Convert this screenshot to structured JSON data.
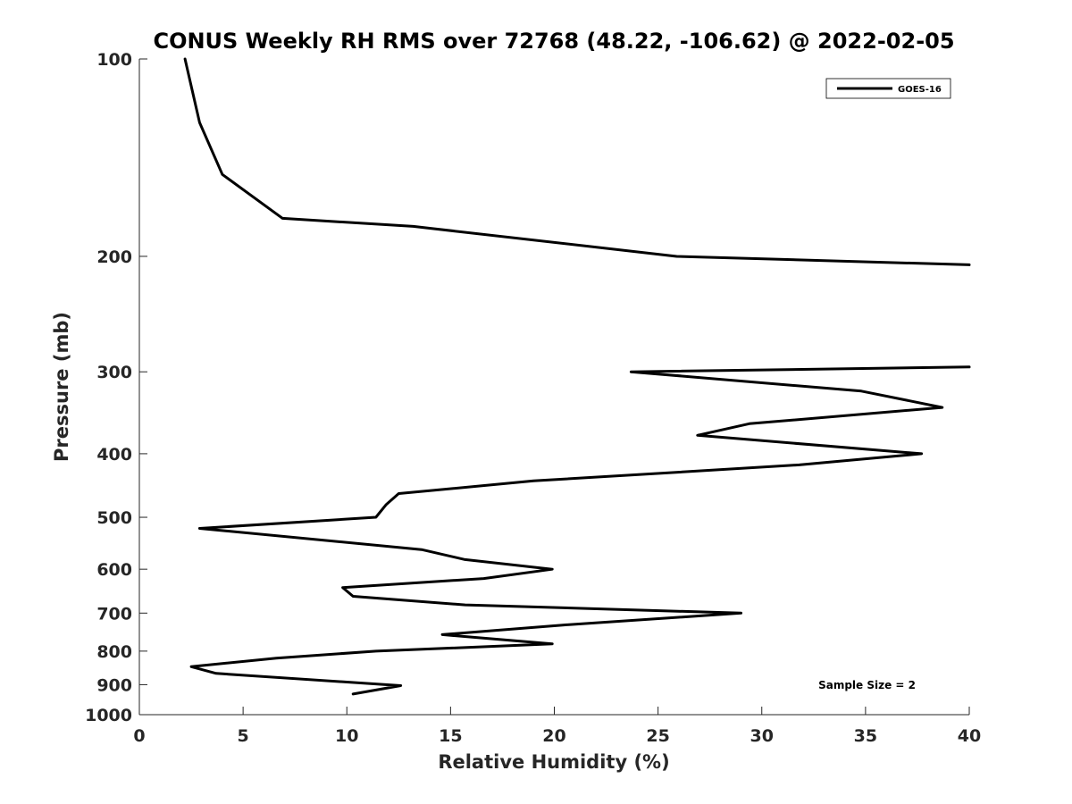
{
  "chart_data": {
    "type": "line",
    "title": "CONUS Weekly RH RMS over 72768 (48.22, -106.62) @ 2022-02-05",
    "xlabel": "Relative Humidity (%)",
    "ylabel": "Pressure (mb)",
    "xlim": [
      0,
      40
    ],
    "ylim": [
      1000,
      100
    ],
    "yscale": "log",
    "y_reversed": true,
    "xticks": [
      0,
      5,
      10,
      15,
      20,
      25,
      30,
      35,
      40
    ],
    "xtick_labels": [
      "0",
      "5",
      "10",
      "15",
      "20",
      "25",
      "30",
      "35",
      "40"
    ],
    "yticks": [
      100,
      200,
      300,
      400,
      500,
      600,
      700,
      800,
      900,
      1000
    ],
    "ytick_labels": [
      "100",
      "200",
      "300",
      "400",
      "500",
      "600",
      "700",
      "800",
      "900",
      "1000"
    ],
    "grid": false,
    "legend_position": "top-right",
    "annotation": "Sample Size = 2",
    "series": [
      {
        "name": "GOES-16",
        "color": "#000000",
        "x": [
          2.2,
          2.9,
          4.0,
          6.9,
          13.2,
          25.9,
          40.0,
          null,
          40.0,
          23.7,
          34.8,
          38.7,
          29.4,
          26.9,
          37.7,
          31.8,
          19.0,
          12.5,
          11.9,
          11.4,
          2.9,
          13.6,
          15.7,
          19.9,
          16.6,
          9.8,
          10.3,
          15.7,
          29.0,
          20.4,
          14.6,
          19.9,
          11.4,
          6.6,
          2.5,
          3.7,
          12.6,
          10.3
        ],
        "y": [
          100,
          125,
          150,
          175,
          180,
          200,
          206,
          null,
          295,
          300,
          321,
          340,
          360,
          375,
          400,
          416,
          440,
          460,
          478,
          500,
          520,
          560,
          580,
          600,
          620,
          640,
          660,
          680,
          700,
          730,
          755,
          780,
          800,
          820,
          845,
          865,
          903,
          930
        ]
      }
    ]
  }
}
